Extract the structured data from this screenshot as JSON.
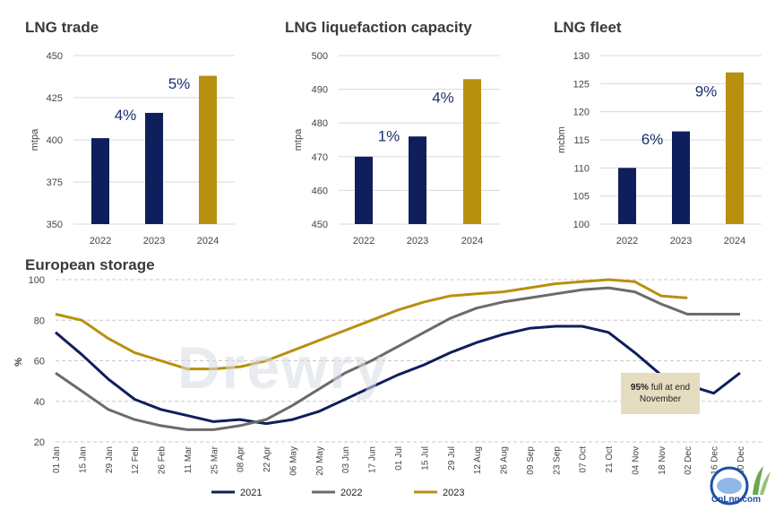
{
  "colors": {
    "navy": "#0f1f5c",
    "gold": "#b8900f",
    "gray": "#6b6b6b",
    "grid": "#d0d0d0"
  },
  "chart_data": [
    {
      "type": "bar",
      "title": "LNG trade",
      "ylabel": "mtpa",
      "categories": [
        "2022",
        "2023",
        "2024"
      ],
      "values": [
        401,
        416,
        438
      ],
      "bar_colors": [
        "#0f1f5c",
        "#0f1f5c",
        "#b8900f"
      ],
      "ylim": [
        350,
        450
      ],
      "yticks": [
        350,
        375,
        400,
        425,
        450
      ],
      "annotations": [
        {
          "text": "4%",
          "between": [
            0,
            1
          ]
        },
        {
          "text": "5%",
          "between": [
            1,
            2
          ]
        }
      ]
    },
    {
      "type": "bar",
      "title": "LNG liquefaction capacity",
      "ylabel": "mtpa",
      "categories": [
        "2022",
        "2023",
        "2024"
      ],
      "values": [
        470,
        476,
        493
      ],
      "bar_colors": [
        "#0f1f5c",
        "#0f1f5c",
        "#b8900f"
      ],
      "ylim": [
        450,
        500
      ],
      "yticks": [
        450,
        460,
        470,
        480,
        490,
        500
      ],
      "annotations": [
        {
          "text": "1%",
          "between": [
            0,
            1
          ]
        },
        {
          "text": "4%",
          "between": [
            1,
            2
          ]
        }
      ]
    },
    {
      "type": "bar",
      "title": "LNG fleet",
      "ylabel": "mcbm",
      "categories": [
        "2022",
        "2023",
        "2024"
      ],
      "values": [
        110,
        116.5,
        127
      ],
      "bar_colors": [
        "#0f1f5c",
        "#0f1f5c",
        "#b8900f"
      ],
      "ylim": [
        100,
        130
      ],
      "yticks": [
        100,
        105,
        110,
        115,
        120,
        125,
        130
      ],
      "annotations": [
        {
          "text": "6%",
          "between": [
            0,
            1
          ]
        },
        {
          "text": "9%",
          "between": [
            1,
            2
          ]
        }
      ]
    },
    {
      "type": "line",
      "title": "European storage",
      "ylabel": "%",
      "ylim": [
        20,
        100
      ],
      "yticks": [
        20,
        40,
        60,
        80,
        100
      ],
      "grid": true,
      "legend": "bottom",
      "x_labels": [
        "01 Jan",
        "15 Jan",
        "29 Jan",
        "12 Feb",
        "26 Feb",
        "11 Mar",
        "25 Mar",
        "08 Apr",
        "22 Apr",
        "06 May",
        "20 May",
        "03 Jun",
        "17 Jun",
        "01 Jul",
        "15 Jul",
        "29 Jul",
        "12 Aug",
        "26 Aug",
        "09 Sep",
        "23 Sep",
        "07 Oct",
        "21 Oct",
        "04 Nov",
        "18 Nov",
        "02 Dec",
        "16 Dec",
        "30 Dec"
      ],
      "series": [
        {
          "name": "2021",
          "color": "#0f1f5c",
          "values": [
            74,
            63,
            51,
            41,
            36,
            33,
            30,
            31,
            29,
            31,
            35,
            41,
            47,
            53,
            58,
            64,
            69,
            73,
            76,
            77,
            77,
            74,
            64,
            53,
            48,
            44,
            54
          ]
        },
        {
          "name": "2022",
          "color": "#6b6b6b",
          "values": [
            54,
            45,
            36,
            31,
            28,
            26,
            26,
            28,
            31,
            38,
            46,
            54,
            60,
            67,
            74,
            81,
            86,
            89,
            91,
            93,
            95,
            96,
            94,
            88,
            83,
            83,
            83
          ]
        },
        {
          "name": "2023",
          "color": "#b8900f",
          "values": [
            83,
            80,
            71,
            64,
            60,
            56,
            56,
            57,
            60,
            65,
            70,
            75,
            80,
            85,
            89,
            92,
            93,
            94,
            96,
            98,
            99,
            100,
            99,
            92,
            91,
            null,
            null
          ]
        }
      ]
    }
  ],
  "callout": {
    "bold": "95%",
    "text1": "full at end",
    "text2": "November"
  },
  "watermark": "Drewry",
  "logo_text": "CnLng.com"
}
